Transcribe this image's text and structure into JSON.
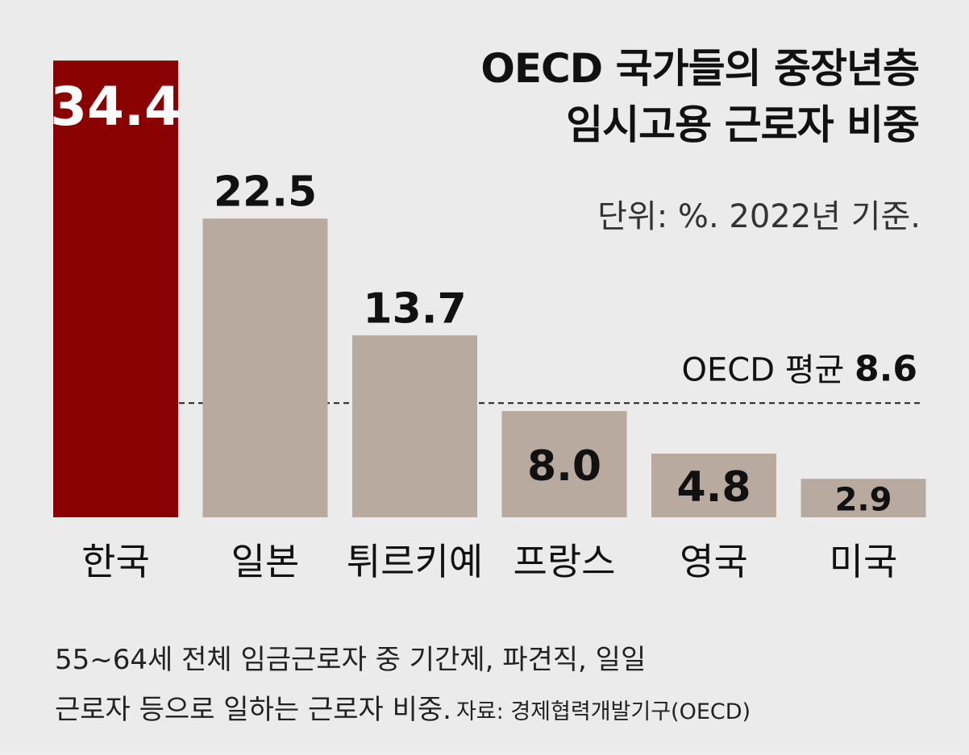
{
  "chart_data": {
    "type": "bar",
    "title": [
      "OECD 국가들의 중장년층",
      "임시고용 근로자 비중"
    ],
    "subtitle": "단위: %. 2022년 기준.",
    "categories": [
      "한국",
      "일본",
      "튀르키예",
      "프랑스",
      "영국",
      "미국"
    ],
    "values": [
      34.4,
      22.5,
      13.7,
      8.0,
      4.8,
      2.9
    ],
    "value_labels": [
      "34.4",
      "22.5",
      "13.7",
      "8.0",
      "4.8",
      "2.9"
    ],
    "reference_line": {
      "label_prefix": "OECD 평균",
      "label_value": "8.6",
      "value": 8.6,
      "style": "dashed"
    },
    "ylim": [
      0,
      35.2
    ],
    "grid": false,
    "legend": "none"
  },
  "colors": {
    "highlight_bar": "#8a0101",
    "bar": "#b8aa9f",
    "background": "#ebebeb",
    "text": "#111111",
    "highlight_label": "#ffffff"
  },
  "footnote": {
    "line1": "55~64세 전체 임금근로자 중 기간제, 파견직, 일일",
    "line2": "근로자 등으로 일하는 근로자 비중.",
    "source": "자료: 경제협력개발기구(OECD)"
  }
}
